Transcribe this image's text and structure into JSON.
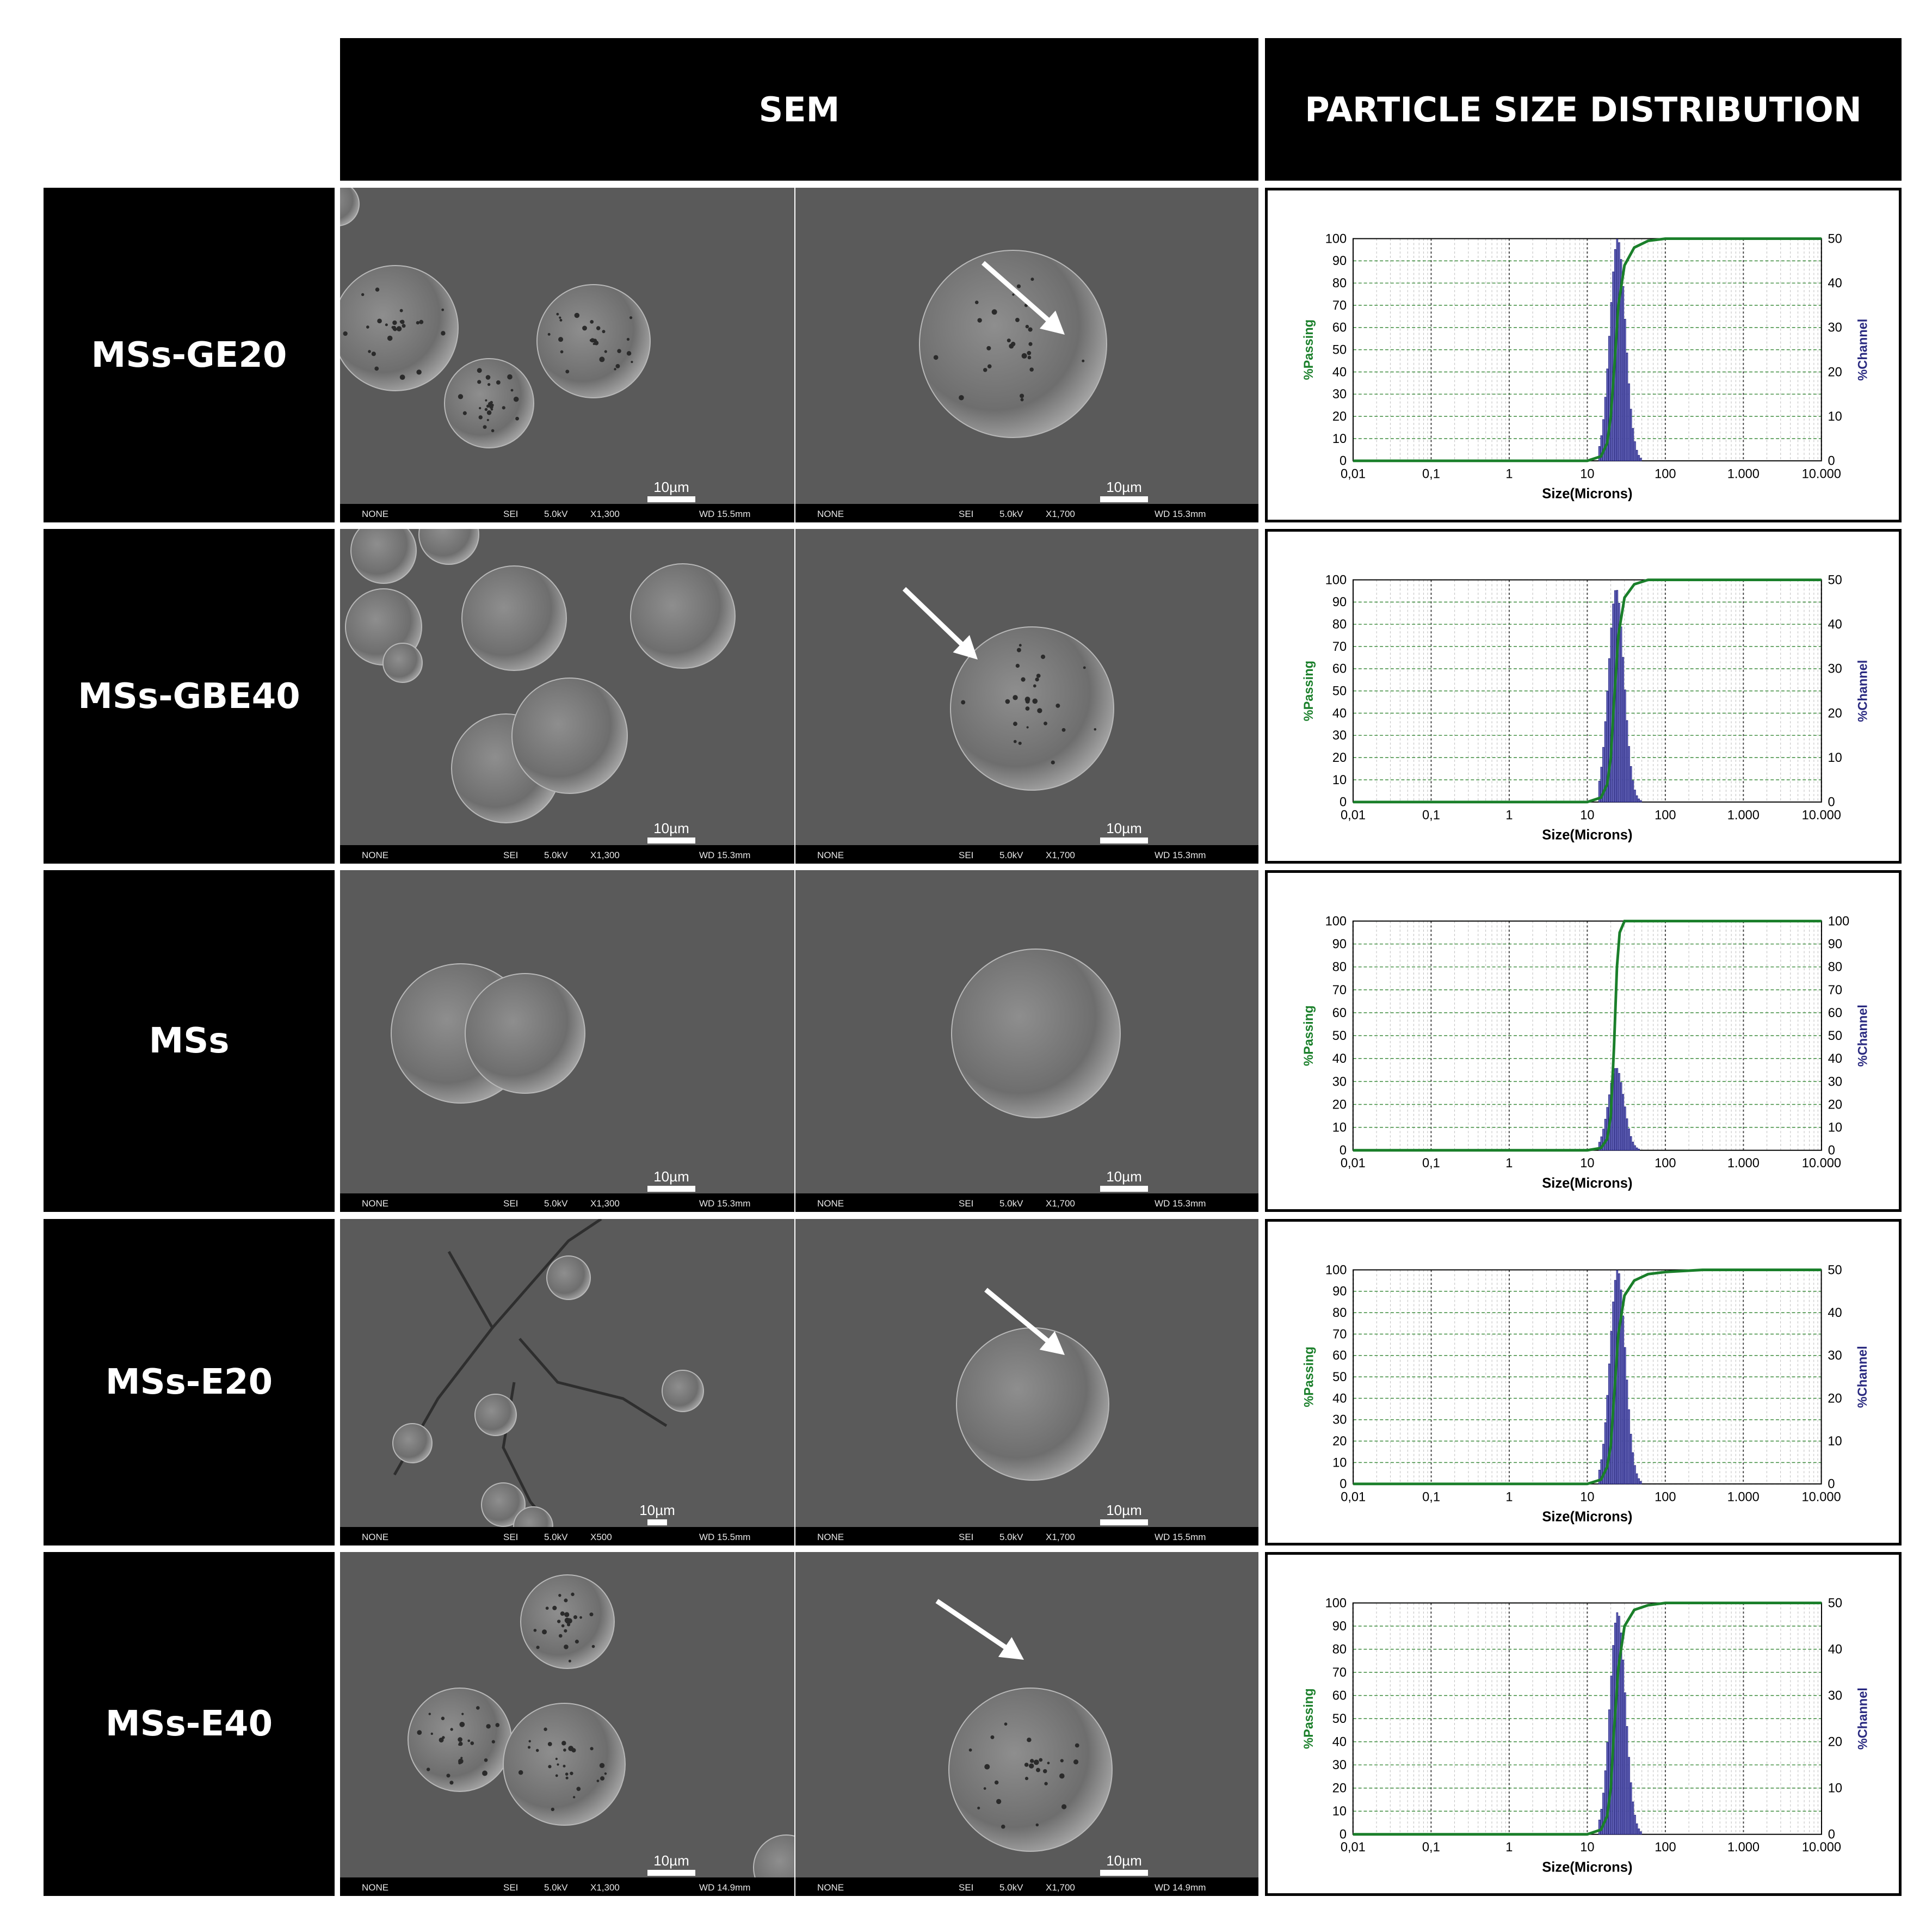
{
  "corner": "",
  "headers": {
    "sem": "SEM",
    "psd": "PARTICLE SIZE DISTRIBUTION"
  },
  "colors": {
    "passing": "#1a7f2a",
    "channel": "#6f6fc8",
    "channel_edge": "#2a2a80",
    "sem_bg": "#5a5a5a"
  },
  "sem_meta": {
    "detector": "NONE",
    "signal": "SEI",
    "voltage": "5.0kV",
    "scale": "10µm"
  },
  "psd_axes": {
    "xlabel": "Size(Microns)",
    "ylabel_left": "%Passing",
    "ylabel_right": "%Channel",
    "x_ticks": [
      "0,01",
      "0,1",
      "1",
      "10",
      "100",
      "1.000",
      "10.000"
    ],
    "y_ticks_left": [
      "0",
      "10",
      "20",
      "30",
      "40",
      "50",
      "60",
      "70",
      "80",
      "90",
      "100"
    ]
  },
  "rows": [
    {
      "label": "MSs-GE20",
      "sem_left": {
        "mag": "X1,300",
        "wd": "WD 15.5mm"
      },
      "sem_right": {
        "mag": "X1,700",
        "wd": "WD 15.3mm"
      },
      "psd": {
        "right_ticks": [
          "0",
          "10",
          "20",
          "30",
          "40",
          "50"
        ],
        "right_max": 50,
        "passing": [
          [
            10,
            0
          ],
          [
            15,
            2
          ],
          [
            18,
            8
          ],
          [
            20,
            20
          ],
          [
            22,
            40
          ],
          [
            25,
            70
          ],
          [
            30,
            88
          ],
          [
            40,
            96
          ],
          [
            60,
            99
          ],
          [
            100,
            100
          ],
          [
            1000,
            100
          ]
        ],
        "channel_peak": 50,
        "channel_peak_size": 24
      }
    },
    {
      "label": "MSs-GBE40",
      "sem_left": {
        "mag": "X1,300",
        "wd": "WD 15.3mm"
      },
      "sem_right": {
        "mag": "X1,700",
        "wd": "WD 15.3mm"
      },
      "psd": {
        "right_ticks": [
          "0",
          "10",
          "20",
          "30",
          "40",
          "50"
        ],
        "right_max": 50,
        "passing": [
          [
            10,
            0
          ],
          [
            15,
            2
          ],
          [
            18,
            8
          ],
          [
            20,
            20
          ],
          [
            22,
            45
          ],
          [
            25,
            75
          ],
          [
            30,
            92
          ],
          [
            40,
            98
          ],
          [
            60,
            100
          ],
          [
            1000,
            100
          ]
        ],
        "channel_peak": 48,
        "channel_peak_size": 23
      }
    },
    {
      "label": "MSs",
      "sem_left": {
        "mag": "X1,300",
        "wd": "WD 15.3mm"
      },
      "sem_right": {
        "mag": "X1,700",
        "wd": "WD 15.3mm"
      },
      "psd": {
        "right_ticks": [
          "0",
          "10",
          "20",
          "30",
          "40",
          "50",
          "60",
          "70",
          "80",
          "90",
          "100"
        ],
        "right_max": 100,
        "passing": [
          [
            10,
            0
          ],
          [
            15,
            1
          ],
          [
            18,
            5
          ],
          [
            20,
            15
          ],
          [
            22,
            45
          ],
          [
            24,
            80
          ],
          [
            26,
            95
          ],
          [
            30,
            100
          ],
          [
            1000,
            100
          ]
        ],
        "channel_peak": 36,
        "channel_peak_size": 23
      }
    },
    {
      "label": "MSs-E20",
      "sem_left": {
        "mag": "X500",
        "wd": "WD 15.5mm"
      },
      "sem_right": {
        "mag": "X1,700",
        "wd": "WD 15.5mm"
      },
      "psd": {
        "right_ticks": [
          "0",
          "10",
          "20",
          "30",
          "40",
          "50"
        ],
        "right_max": 50,
        "passing": [
          [
            10,
            0
          ],
          [
            15,
            2
          ],
          [
            18,
            8
          ],
          [
            20,
            18
          ],
          [
            22,
            40
          ],
          [
            25,
            70
          ],
          [
            30,
            88
          ],
          [
            40,
            95
          ],
          [
            60,
            98
          ],
          [
            100,
            99
          ],
          [
            300,
            100
          ],
          [
            1000,
            100
          ]
        ],
        "channel_peak": 50,
        "channel_peak_size": 24
      }
    },
    {
      "label": "MSs-E40",
      "sem_left": {
        "mag": "X1,300",
        "wd": "WD 14.9mm"
      },
      "sem_right": {
        "mag": "X1,700",
        "wd": "WD 14.9mm"
      },
      "psd": {
        "right_ticks": [
          "0",
          "10",
          "20",
          "30",
          "40",
          "50"
        ],
        "right_max": 50,
        "passing": [
          [
            10,
            0
          ],
          [
            15,
            2
          ],
          [
            18,
            8
          ],
          [
            20,
            20
          ],
          [
            22,
            45
          ],
          [
            25,
            72
          ],
          [
            30,
            90
          ],
          [
            40,
            97
          ],
          [
            60,
            99
          ],
          [
            100,
            100
          ],
          [
            1000,
            100
          ]
        ],
        "channel_peak": 48,
        "channel_peak_size": 24
      }
    }
  ]
}
